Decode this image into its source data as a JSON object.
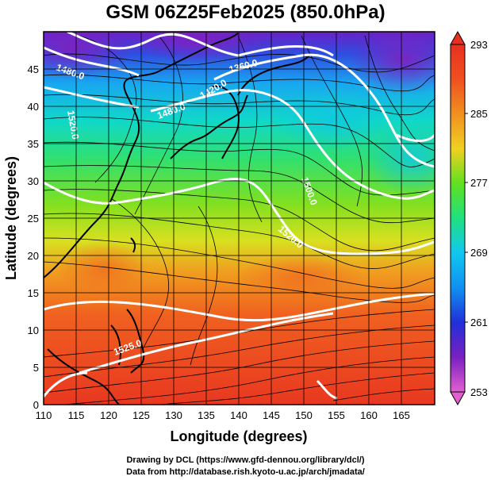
{
  "title": "GSM 06Z25Feb2025 (850.0hPa)",
  "xlabel": "Longitude (degrees)",
  "ylabel": "Latitude  (degrees)",
  "x_ticks": [
    "110",
    "115",
    "120",
    "125",
    "130",
    "135",
    "140",
    "145",
    "150",
    "155",
    "160",
    "165"
  ],
  "y_ticks": [
    "0",
    "5",
    "10",
    "15",
    "20",
    "25",
    "30",
    "35",
    "40",
    "45"
  ],
  "colorbar": {
    "labels": [
      "293",
      "285",
      "277",
      "269",
      "261",
      "253"
    ],
    "min": 253,
    "max": 293,
    "colors": [
      "#e060d0",
      "#7a20c0",
      "#2030d8",
      "#1090f0",
      "#10d0e0",
      "#20e080",
      "#60e020",
      "#c0e020",
      "#f0d020",
      "#f09020",
      "#f05020",
      "#e83020"
    ]
  },
  "contour_labels": [
    "1480.0",
    "1360.0",
    "1420.0",
    "1480.0",
    "1500.0",
    "1520.0",
    "1520.0",
    "1525.0"
  ],
  "credits": [
    "Drawing by DCL (https://www.gfd-dennou.org/library/dcl/)",
    "Data from http://database.rish.kyoto-u.ac.jp/arch/jmadata/"
  ],
  "chart_data": {
    "type": "heatmap",
    "title": "GSM 06Z25Feb2025 (850.0hPa)",
    "xlabel": "Longitude (degrees)",
    "ylabel": "Latitude  (degrees)",
    "xlim": [
      110,
      170
    ],
    "ylim": [
      0,
      50
    ],
    "color_range": [
      253,
      293
    ],
    "overlays": [
      "streamlines",
      "geopotential height contours",
      "coastlines"
    ],
    "contour_levels_labeled": [
      1360.0,
      1420.0,
      1480.0,
      1500.0,
      1520.0,
      1525.0
    ]
  }
}
